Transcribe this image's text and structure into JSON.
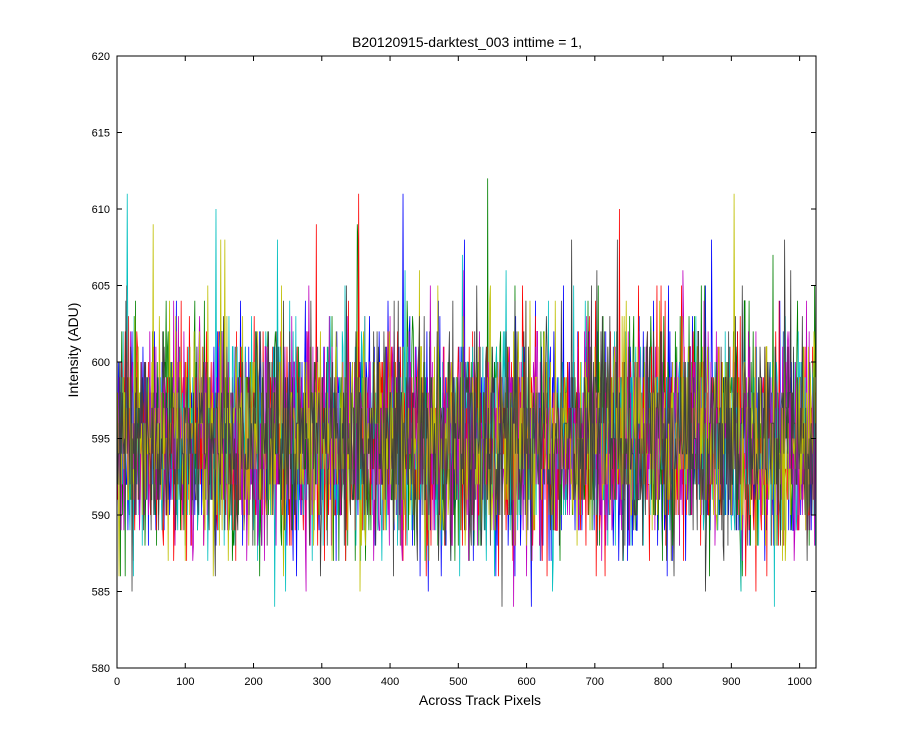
{
  "chart_data": {
    "type": "line",
    "title": "B20120915-darktest_003 inttime = 1,",
    "xlabel": "Across Track Pixels",
    "ylabel": "Intensity (ADU)",
    "xlim": [
      0,
      1024
    ],
    "ylim": [
      580,
      620
    ],
    "xticks": [
      0,
      100,
      200,
      300,
      400,
      500,
      600,
      700,
      800,
      900,
      1000
    ],
    "yticks": [
      580,
      585,
      590,
      595,
      600,
      605,
      610,
      615,
      620
    ],
    "grid": false,
    "legend": "none",
    "series_colors": [
      "#0000ff",
      "#008000",
      "#ff0000",
      "#00bfbf",
      "#bf00bf",
      "#bfbf00",
      "#3f3f3f"
    ],
    "n_series": 7,
    "points_per_series": 1024,
    "noise_mean": 595,
    "noise_min": 582,
    "noise_max": 616,
    "noise_note": "Each series is a noisy dark-frame readout of 1024 pixels with values fluctuating roughly between 582 and 616 ADU around a mean of about 595."
  }
}
